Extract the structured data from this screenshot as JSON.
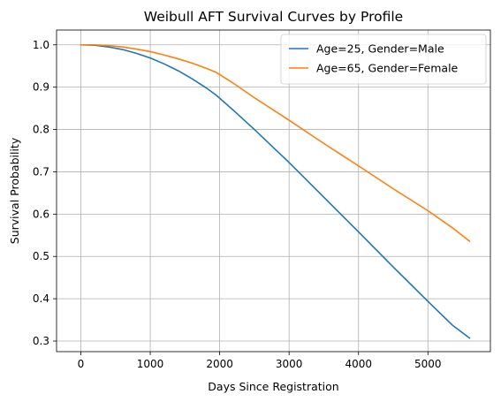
{
  "chart_data": {
    "type": "line",
    "title": "Weibull AFT Survival Curves by Profile",
    "xlabel": "Days Since Registration",
    "ylabel": "Survival Probability",
    "xlim": [
      -350,
      5900
    ],
    "ylim": [
      0.275,
      1.035
    ],
    "xticks": [
      0,
      1000,
      2000,
      3000,
      4000,
      5000
    ],
    "yticks": [
      0.3,
      0.4,
      0.5,
      0.6,
      0.7,
      0.8,
      0.9,
      1.0
    ],
    "xtick_labels": [
      "0",
      "1000",
      "2000",
      "3000",
      "4000",
      "5000"
    ],
    "ytick_labels": [
      "0.3",
      "0.4",
      "0.5",
      "0.6",
      "0.7",
      "0.8",
      "0.9",
      "1.0"
    ],
    "grid": true,
    "legend_position": "top-right",
    "series": [
      {
        "name": "Age=25, Gender=Male",
        "color": "#1f77b4",
        "x": [
          0,
          200,
          400,
          600,
          800,
          1000,
          1200,
          1400,
          1600,
          1800,
          1950,
          2200,
          2500,
          3000,
          3500,
          4000,
          4500,
          5000,
          5350,
          5600
        ],
        "y": [
          1.0,
          0.999,
          0.995,
          0.989,
          0.98,
          0.969,
          0.955,
          0.939,
          0.92,
          0.899,
          0.881,
          0.845,
          0.8,
          0.722,
          0.64,
          0.558,
          0.475,
          0.394,
          0.338,
          0.307
        ]
      },
      {
        "name": "Age=65, Gender=Female",
        "color": "#ff7f0e",
        "x": [
          0,
          200,
          400,
          600,
          800,
          1000,
          1200,
          1400,
          1600,
          1800,
          1950,
          2200,
          2500,
          3000,
          3500,
          4000,
          4500,
          5000,
          5350,
          5600
        ],
        "y": [
          1.0,
          1.0,
          0.998,
          0.995,
          0.99,
          0.984,
          0.976,
          0.967,
          0.957,
          0.945,
          0.935,
          0.909,
          0.875,
          0.822,
          0.767,
          0.714,
          0.66,
          0.608,
          0.568,
          0.536
        ]
      }
    ]
  }
}
